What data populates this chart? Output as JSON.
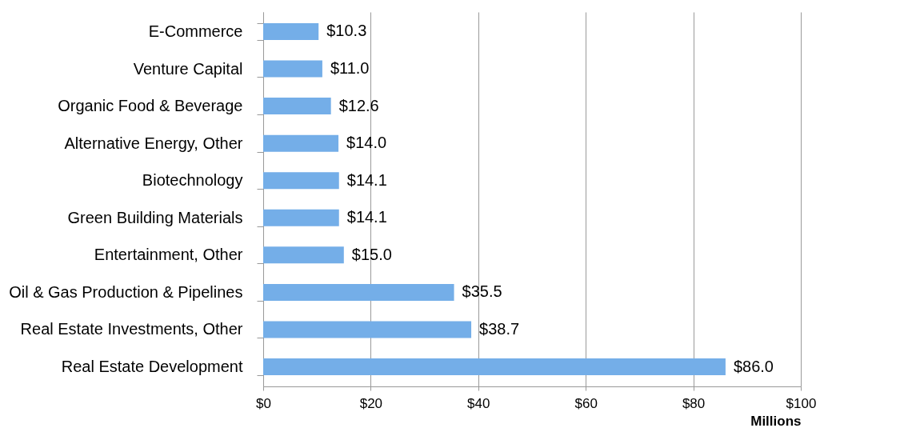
{
  "chart_data": {
    "type": "bar",
    "orientation": "horizontal",
    "xlabel": "Millions",
    "categories": [
      "E-Commerce",
      "Venture Capital",
      "Organic Food & Beverage",
      "Alternative Energy, Other",
      "Biotechnology",
      "Green Building Materials",
      "Entertainment, Other",
      "Oil & Gas Production & Pipelines",
      "Real Estate Investments, Other",
      "Real Estate Development"
    ],
    "values": [
      10.3,
      11.0,
      12.6,
      14.0,
      14.1,
      14.1,
      15.0,
      35.5,
      38.7,
      86.0
    ],
    "value_labels": [
      "$10.3",
      "$11.0",
      "$12.6",
      "$14.0",
      "$14.1",
      "$14.1",
      "$15.0",
      "$35.5",
      "$38.7",
      "$86.0"
    ],
    "color": "#74aee8",
    "xlim": [
      0,
      100
    ],
    "xticks": [
      {
        "value": 0,
        "label": "$0"
      },
      {
        "value": 20,
        "label": "$20"
      },
      {
        "value": 40,
        "label": "$40"
      },
      {
        "value": 60,
        "label": "$60"
      },
      {
        "value": 80,
        "label": "$80"
      },
      {
        "value": 100,
        "label": "$100"
      }
    ],
    "grid": "x"
  }
}
